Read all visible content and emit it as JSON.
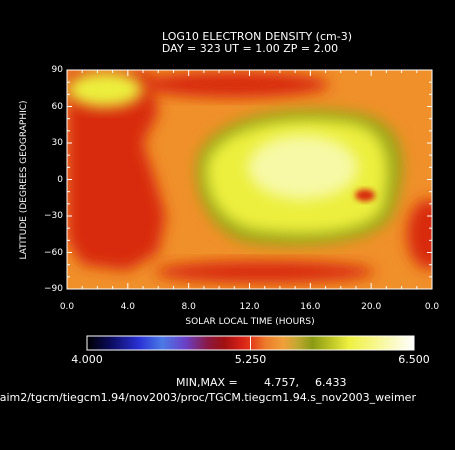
{
  "header": {
    "title": "LOG10 ELECTRON DENSITY (cm-3)",
    "subtitle": "DAY = 323   UT =   1.00   ZP =    2.00"
  },
  "footer": {
    "minmax_label": "MIN,MAX =",
    "min_value": "4.757,",
    "max_value": "6.433",
    "file_path": "/aim2/tgcm/tiegcm1.94/nov2003/proc/TGCM.tiegcm1.94.s_nov2003_weimer"
  },
  "chart_data": {
    "type": "heatmap",
    "title": "LOG10 ELECTRON DENSITY (cm-3)",
    "xlabel": "SOLAR LOCAL TIME (HOURS)",
    "ylabel": "LATITUDE (DEGREES GEOGRAPHIC)",
    "x_ticks": [
      "0.0",
      "4.0",
      "8.0",
      "12.0",
      "16.0",
      "20.0",
      "0.0"
    ],
    "y_ticks": [
      "90",
      "60",
      "30",
      "0",
      "−30",
      "−60",
      "−90"
    ],
    "xlim": [
      0,
      24
    ],
    "ylim": [
      -90,
      90
    ],
    "colorbar": {
      "min": 4.0,
      "mid": 5.25,
      "max": 6.5,
      "labels": [
        "4.000",
        "5.250",
        "6.500"
      ]
    },
    "data_range": {
      "min": 4.757,
      "max": 6.433
    },
    "colors": {
      "background": "#000000",
      "low_red": "#d82a10",
      "orange": "#f0902a",
      "olive": "#9aa414",
      "yellow": "#ecef3e",
      "peak": "#f7f9a6"
    }
  }
}
